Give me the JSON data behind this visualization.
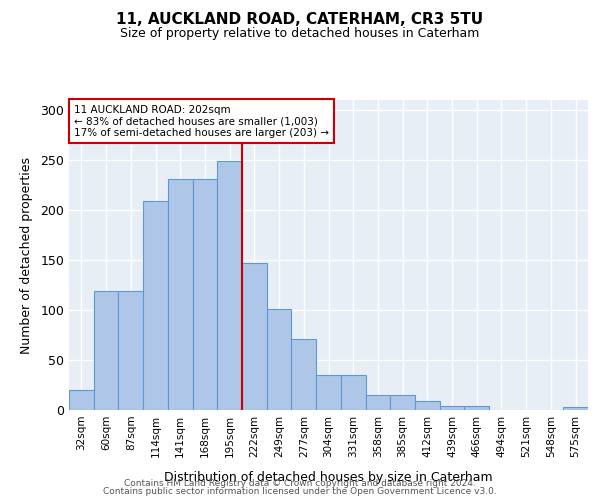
{
  "title1": "11, AUCKLAND ROAD, CATERHAM, CR3 5TU",
  "title2": "Size of property relative to detached houses in Caterham",
  "xlabel": "Distribution of detached houses by size in Caterham",
  "ylabel": "Number of detached properties",
  "bar_labels": [
    "32sqm",
    "60sqm",
    "87sqm",
    "114sqm",
    "141sqm",
    "168sqm",
    "195sqm",
    "222sqm",
    "249sqm",
    "277sqm",
    "304sqm",
    "331sqm",
    "358sqm",
    "385sqm",
    "412sqm",
    "439sqm",
    "466sqm",
    "494sqm",
    "521sqm",
    "548sqm",
    "575sqm"
  ],
  "bar_values": [
    20,
    119,
    119,
    209,
    231,
    231,
    249,
    147,
    101,
    71,
    35,
    35,
    15,
    15,
    9,
    4,
    4,
    0,
    0,
    0,
    3
  ],
  "bar_color": "#aec6e8",
  "bar_edge_color": "#5b9bd5",
  "ylim": [
    0,
    310
  ],
  "yticks": [
    0,
    50,
    100,
    150,
    200,
    250,
    300
  ],
  "red_line_bin_index": 7,
  "annotation_line1": "11 AUCKLAND ROAD: 202sqm",
  "annotation_line2": "← 83% of detached houses are smaller (1,003)",
  "annotation_line3": "17% of semi-detached houses are larger (203) →",
  "red_line_color": "#cc0000",
  "bg_color": "#e8eef6",
  "grid_color": "#c8d4e8",
  "footer1": "Contains HM Land Registry data © Crown copyright and database right 2024.",
  "footer2": "Contains public sector information licensed under the Open Government Licence v3.0."
}
